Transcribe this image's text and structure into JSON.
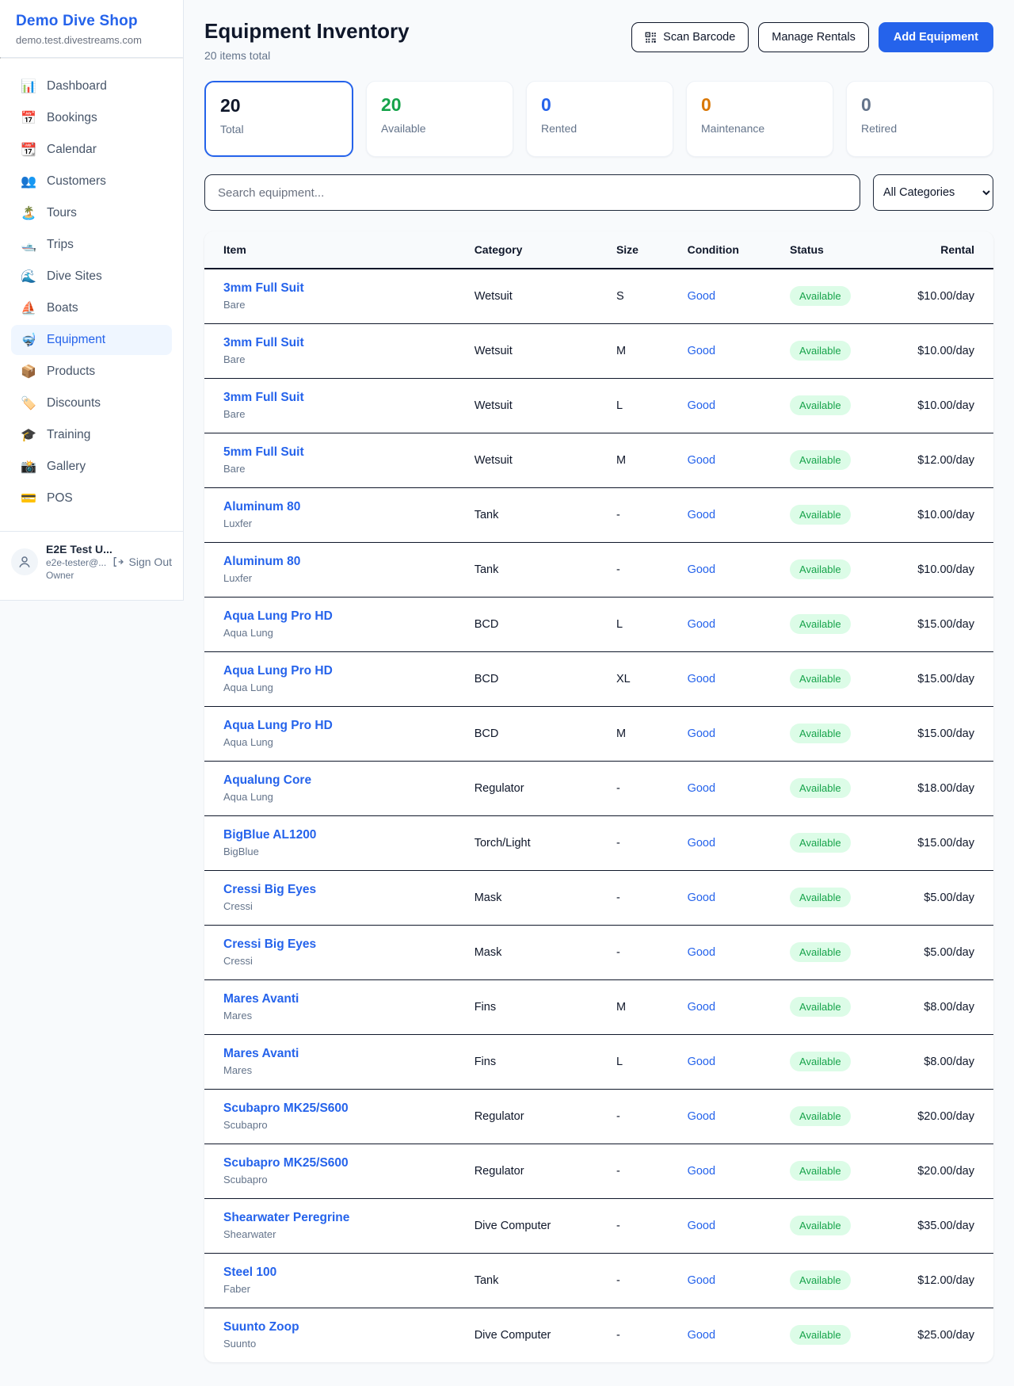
{
  "sidebar": {
    "brand": {
      "name": "Demo Dive Shop",
      "domain": "demo.test.divestreams.com"
    },
    "nav": [
      {
        "label": "Dashboard",
        "icon": "📊",
        "active": false
      },
      {
        "label": "Bookings",
        "icon": "📅",
        "active": false
      },
      {
        "label": "Calendar",
        "icon": "📆",
        "active": false
      },
      {
        "label": "Customers",
        "icon": "👥",
        "active": false
      },
      {
        "label": "Tours",
        "icon": "🏝️",
        "active": false
      },
      {
        "label": "Trips",
        "icon": "🛥️",
        "active": false
      },
      {
        "label": "Dive Sites",
        "icon": "🌊",
        "active": false
      },
      {
        "label": "Boats",
        "icon": "⛵",
        "active": false
      },
      {
        "label": "Equipment",
        "icon": "🤿",
        "active": true
      },
      {
        "label": "Products",
        "icon": "📦",
        "active": false
      },
      {
        "label": "Discounts",
        "icon": "🏷️",
        "active": false
      },
      {
        "label": "Training",
        "icon": "🎓",
        "active": false
      },
      {
        "label": "Gallery",
        "icon": "📸",
        "active": false
      },
      {
        "label": "POS",
        "icon": "💳",
        "active": false
      }
    ],
    "user": {
      "name": "E2E Test U...",
      "email": "e2e-tester@...",
      "role": "Owner",
      "sign_out_label": "Sign Out"
    }
  },
  "header": {
    "title": "Equipment Inventory",
    "subtitle": "20 items total",
    "scan_button": "Scan Barcode",
    "manage_button": "Manage Rentals",
    "add_button": "Add Equipment"
  },
  "stats": [
    {
      "value": "20",
      "label": "Total",
      "color": "#0f172a",
      "selected": true
    },
    {
      "value": "20",
      "label": "Available",
      "color": "#16a34a",
      "selected": false
    },
    {
      "value": "0",
      "label": "Rented",
      "color": "#2563eb",
      "selected": false
    },
    {
      "value": "0",
      "label": "Maintenance",
      "color": "#d97706",
      "selected": false
    },
    {
      "value": "0",
      "label": "Retired",
      "color": "#64748b",
      "selected": false
    }
  ],
  "filters": {
    "search_placeholder": "Search equipment...",
    "category_selected": "All Categories"
  },
  "table": {
    "columns": [
      "Item",
      "Category",
      "Size",
      "Condition",
      "Status",
      "Rental"
    ],
    "rows": [
      {
        "name": "3mm Full Suit",
        "brand": "Bare",
        "category": "Wetsuit",
        "size": "S",
        "condition": "Good",
        "status": "Available",
        "rental": "$10.00/day"
      },
      {
        "name": "3mm Full Suit",
        "brand": "Bare",
        "category": "Wetsuit",
        "size": "M",
        "condition": "Good",
        "status": "Available",
        "rental": "$10.00/day"
      },
      {
        "name": "3mm Full Suit",
        "brand": "Bare",
        "category": "Wetsuit",
        "size": "L",
        "condition": "Good",
        "status": "Available",
        "rental": "$10.00/day"
      },
      {
        "name": "5mm Full Suit",
        "brand": "Bare",
        "category": "Wetsuit",
        "size": "M",
        "condition": "Good",
        "status": "Available",
        "rental": "$12.00/day"
      },
      {
        "name": "Aluminum 80",
        "brand": "Luxfer",
        "category": "Tank",
        "size": "-",
        "condition": "Good",
        "status": "Available",
        "rental": "$10.00/day"
      },
      {
        "name": "Aluminum 80",
        "brand": "Luxfer",
        "category": "Tank",
        "size": "-",
        "condition": "Good",
        "status": "Available",
        "rental": "$10.00/day"
      },
      {
        "name": "Aqua Lung Pro HD",
        "brand": "Aqua Lung",
        "category": "BCD",
        "size": "L",
        "condition": "Good",
        "status": "Available",
        "rental": "$15.00/day"
      },
      {
        "name": "Aqua Lung Pro HD",
        "brand": "Aqua Lung",
        "category": "BCD",
        "size": "XL",
        "condition": "Good",
        "status": "Available",
        "rental": "$15.00/day"
      },
      {
        "name": "Aqua Lung Pro HD",
        "brand": "Aqua Lung",
        "category": "BCD",
        "size": "M",
        "condition": "Good",
        "status": "Available",
        "rental": "$15.00/day"
      },
      {
        "name": "Aqualung Core",
        "brand": "Aqua Lung",
        "category": "Regulator",
        "size": "-",
        "condition": "Good",
        "status": "Available",
        "rental": "$18.00/day"
      },
      {
        "name": "BigBlue AL1200",
        "brand": "BigBlue",
        "category": "Torch/Light",
        "size": "-",
        "condition": "Good",
        "status": "Available",
        "rental": "$15.00/day"
      },
      {
        "name": "Cressi Big Eyes",
        "brand": "Cressi",
        "category": "Mask",
        "size": "-",
        "condition": "Good",
        "status": "Available",
        "rental": "$5.00/day"
      },
      {
        "name": "Cressi Big Eyes",
        "brand": "Cressi",
        "category": "Mask",
        "size": "-",
        "condition": "Good",
        "status": "Available",
        "rental": "$5.00/day"
      },
      {
        "name": "Mares Avanti",
        "brand": "Mares",
        "category": "Fins",
        "size": "M",
        "condition": "Good",
        "status": "Available",
        "rental": "$8.00/day"
      },
      {
        "name": "Mares Avanti",
        "brand": "Mares",
        "category": "Fins",
        "size": "L",
        "condition": "Good",
        "status": "Available",
        "rental": "$8.00/day"
      },
      {
        "name": "Scubapro MK25/S600",
        "brand": "Scubapro",
        "category": "Regulator",
        "size": "-",
        "condition": "Good",
        "status": "Available",
        "rental": "$20.00/day"
      },
      {
        "name": "Scubapro MK25/S600",
        "brand": "Scubapro",
        "category": "Regulator",
        "size": "-",
        "condition": "Good",
        "status": "Available",
        "rental": "$20.00/day"
      },
      {
        "name": "Shearwater Peregrine",
        "brand": "Shearwater",
        "category": "Dive Computer",
        "size": "-",
        "condition": "Good",
        "status": "Available",
        "rental": "$35.00/day"
      },
      {
        "name": "Steel 100",
        "brand": "Faber",
        "category": "Tank",
        "size": "-",
        "condition": "Good",
        "status": "Available",
        "rental": "$12.00/day"
      },
      {
        "name": "Suunto Zoop",
        "brand": "Suunto",
        "category": "Dive Computer",
        "size": "-",
        "condition": "Good",
        "status": "Available",
        "rental": "$25.00/day"
      }
    ]
  }
}
